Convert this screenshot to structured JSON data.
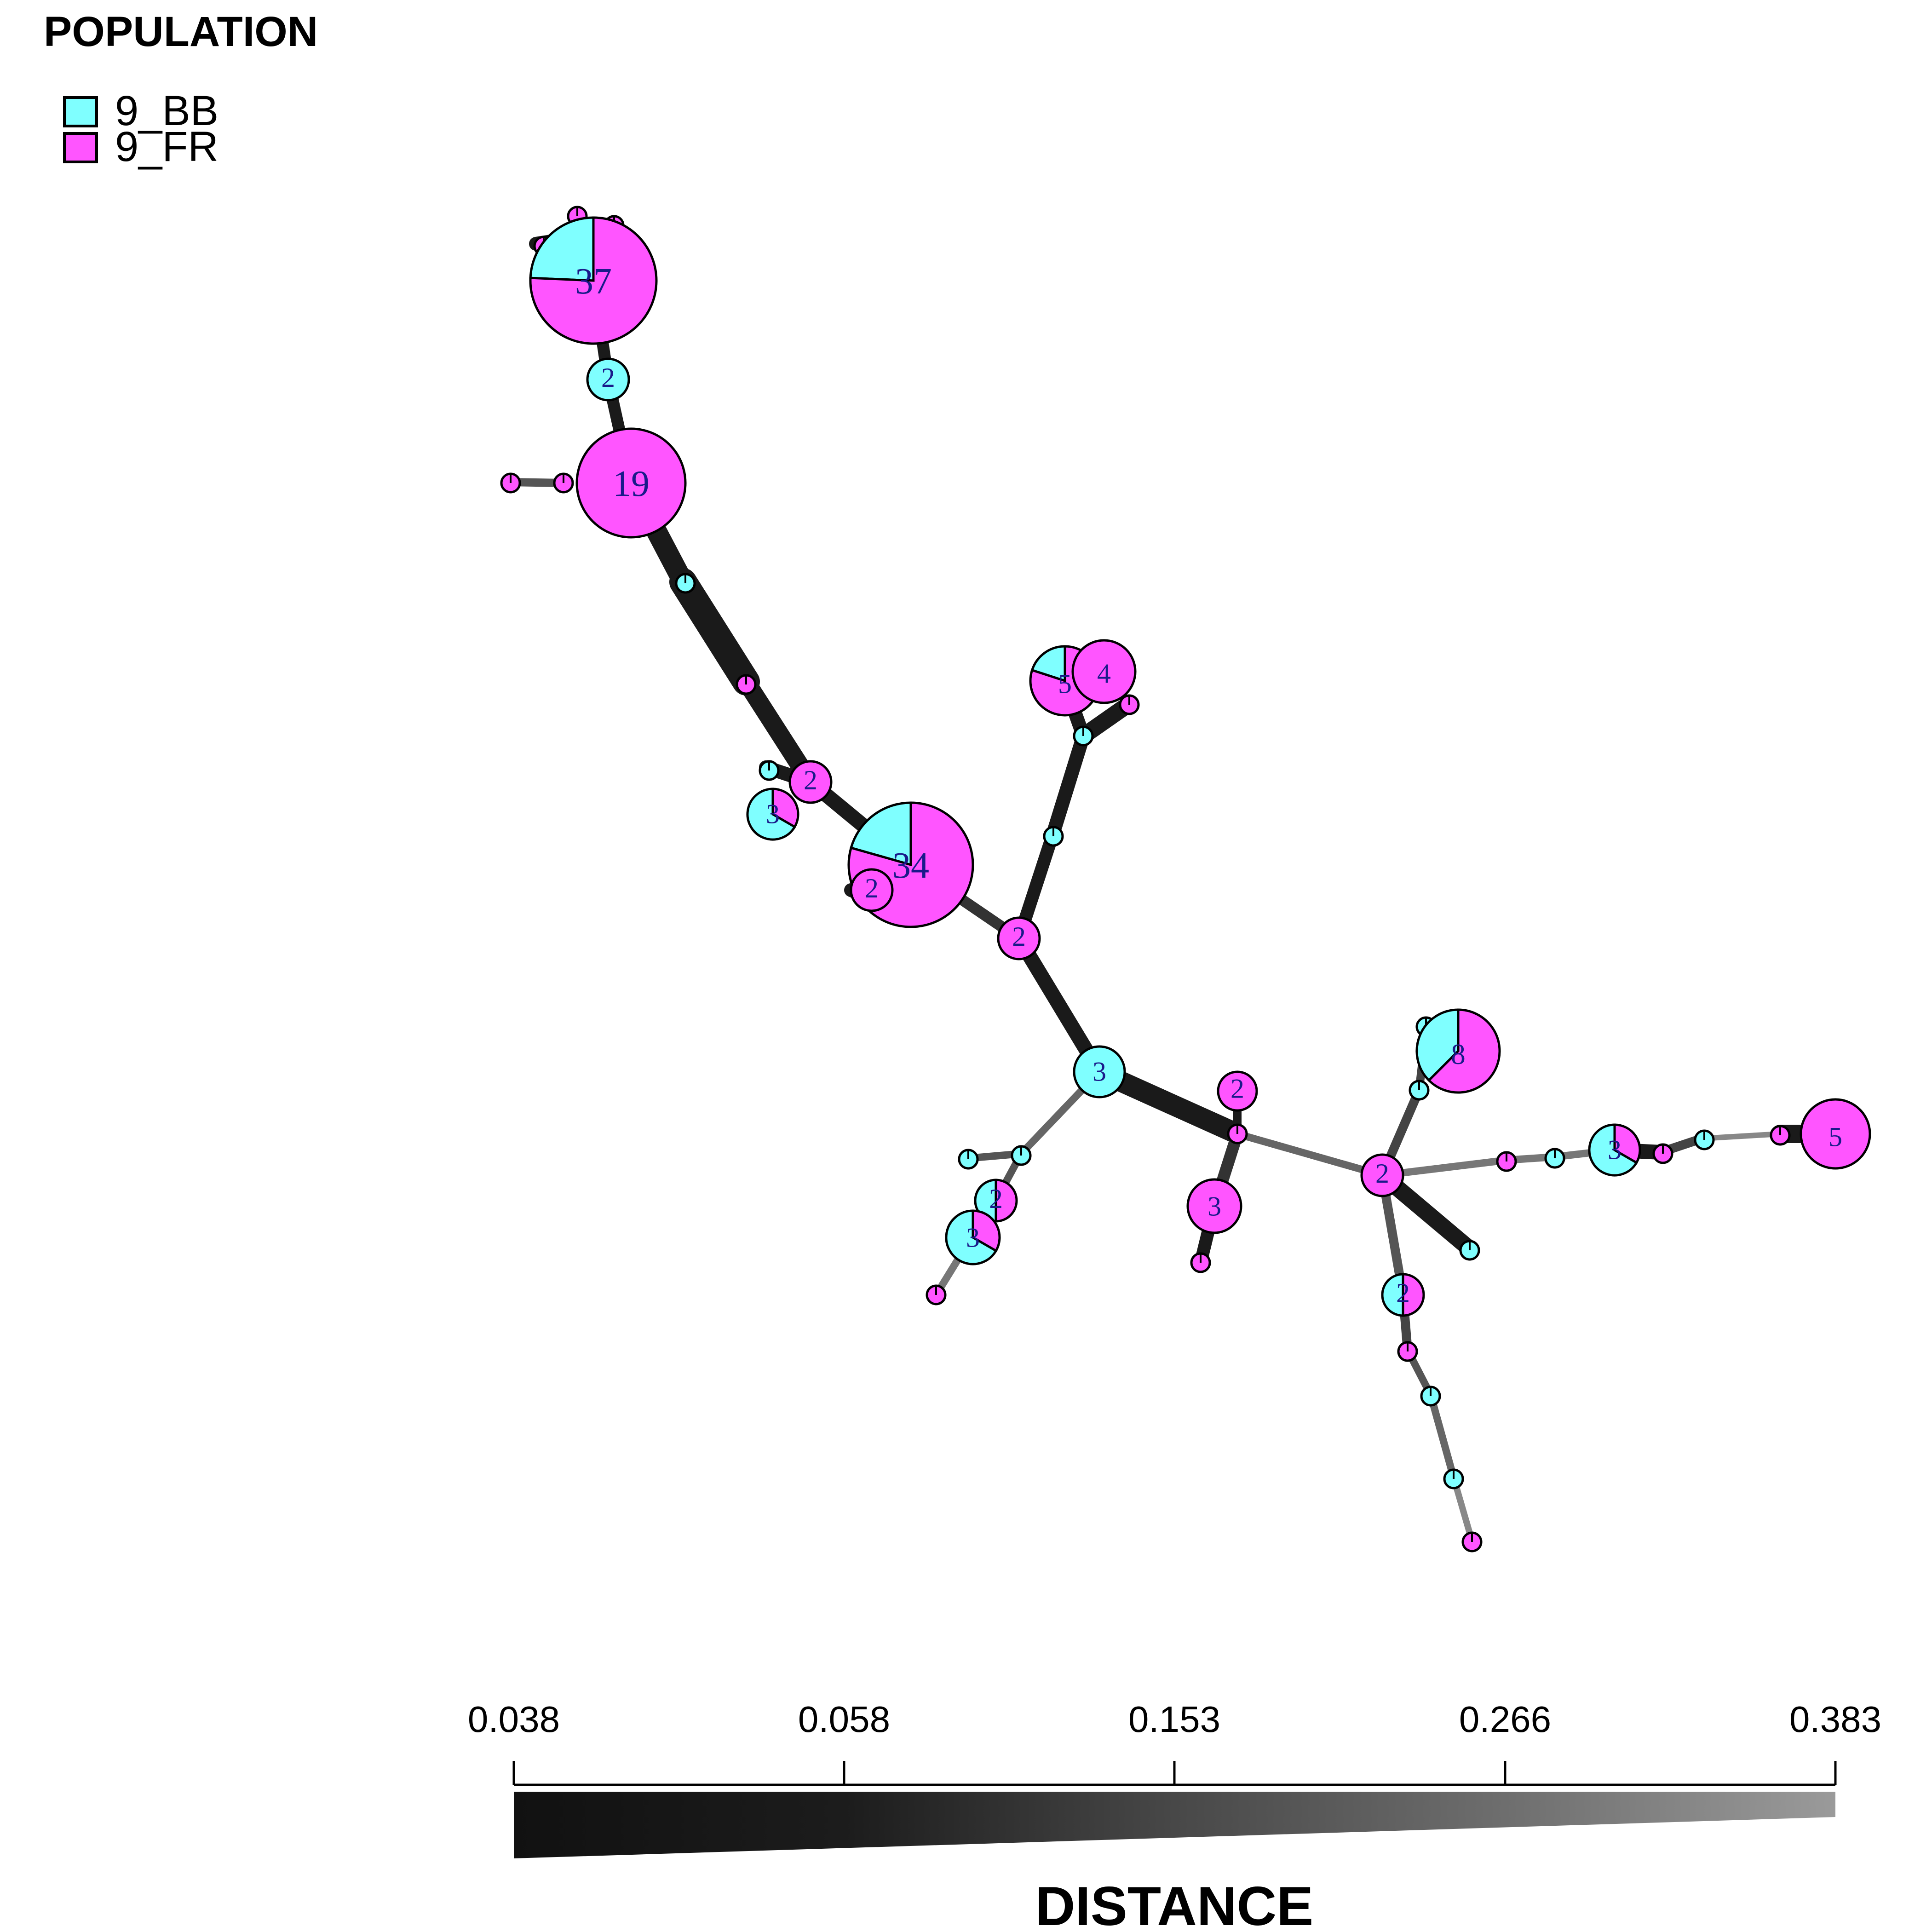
{
  "legend": {
    "title": "POPULATION",
    "items": [
      {
        "label": "9_BB",
        "color": "#7FFFFF"
      },
      {
        "label": "9_FR",
        "color": "#FF55FF"
      }
    ]
  },
  "scale": {
    "title": "DISTANCE",
    "ticks": [
      "0.038",
      "0.058",
      "0.153",
      "0.266",
      "0.383"
    ],
    "gradient_colors": [
      "#111111",
      "#1c1c1c",
      "#4a4a4a",
      "#707070",
      "#9a9a9a"
    ]
  },
  "network": {
    "nodes": [
      {
        "id": "n37",
        "count": 37,
        "bb": 9
      },
      {
        "id": "n2a",
        "count": 2,
        "bb": 2
      },
      {
        "id": "n19",
        "count": 19,
        "bb": 0
      },
      {
        "id": "n2b",
        "count": 2,
        "bb": 0
      },
      {
        "id": "n3a",
        "count": 3,
        "bb": 2
      },
      {
        "id": "n34",
        "count": 34,
        "bb": 7
      },
      {
        "id": "n2c",
        "count": 2,
        "bb": 0
      },
      {
        "id": "n5a",
        "count": 5,
        "bb": 1
      },
      {
        "id": "n4",
        "count": 4,
        "bb": 0
      },
      {
        "id": "n2d",
        "count": 2,
        "bb": 0
      },
      {
        "id": "n3b",
        "count": 3,
        "bb": 3
      },
      {
        "id": "n2e",
        "count": 2,
        "bb": 0
      },
      {
        "id": "n3c",
        "count": 3,
        "bb": 0
      },
      {
        "id": "n2f",
        "count": 2,
        "bb": 1
      },
      {
        "id": "n3d",
        "count": 3,
        "bb": 2
      },
      {
        "id": "n8",
        "count": 8,
        "bb": 3
      },
      {
        "id": "n2g",
        "count": 2,
        "bb": 0
      },
      {
        "id": "n3e",
        "count": 3,
        "bb": 2
      },
      {
        "id": "n5b",
        "count": 5,
        "bb": 0
      },
      {
        "id": "n2h",
        "count": 2,
        "bb": 1
      }
    ],
    "edges_summary": "minimum spanning network linking haplotypes; edge shade encodes distance"
  }
}
